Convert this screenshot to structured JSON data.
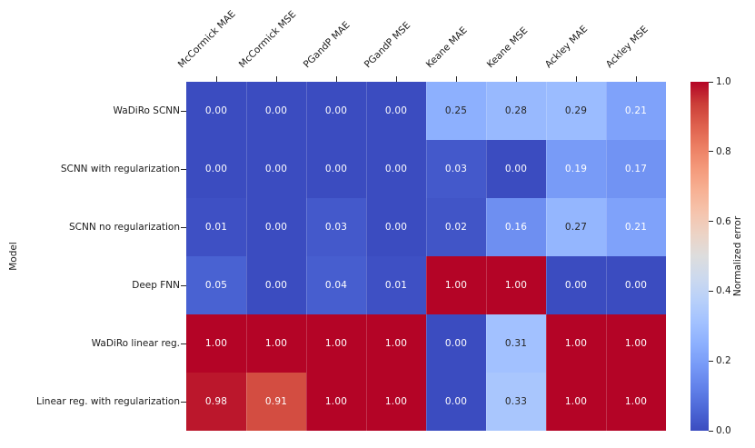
{
  "chart_data": {
    "type": "heatmap",
    "title": "",
    "xlabel": "",
    "ylabel": "Model",
    "x_categories": [
      "McCormick MAE",
      "McCormick MSE",
      "PGandP MAE",
      "PGandP MSE",
      "Keane MAE",
      "Keane MSE",
      "Ackley MAE",
      "Ackley MSE"
    ],
    "y_categories": [
      "WaDiRo SCNN",
      "SCNN with regularization",
      "SCNN no regularization",
      "Deep FNN",
      "WaDiRo linear reg.",
      "Linear reg. with regularization"
    ],
    "values": [
      [
        0.0,
        0.0,
        0.0,
        0.0,
        0.25,
        0.28,
        0.29,
        0.21
      ],
      [
        0.0,
        0.0,
        0.0,
        0.0,
        0.03,
        0.0,
        0.19,
        0.17
      ],
      [
        0.01,
        0.0,
        0.03,
        0.0,
        0.02,
        0.16,
        0.27,
        0.21
      ],
      [
        0.05,
        0.0,
        0.04,
        0.01,
        1.0,
        1.0,
        0.0,
        0.0
      ],
      [
        1.0,
        1.0,
        1.0,
        1.0,
        0.0,
        0.31,
        1.0,
        1.0
      ],
      [
        0.98,
        0.91,
        1.0,
        1.0,
        0.0,
        0.33,
        1.0,
        1.0
      ]
    ],
    "annotation_decimals": 2,
    "vmin": 0.0,
    "vmax": 1.0,
    "colormap": "coolwarm",
    "colorbar_label": "Normalized error",
    "colorbar_ticks": [
      1.0,
      0.8,
      0.6,
      0.4,
      0.2,
      0.0
    ],
    "x_tick_rotation_deg": 45,
    "x_ticks_position": "top",
    "grid": false
  },
  "colors": {
    "colormap_stops": [
      "#3B4CC0",
      "#4D68D7",
      "#6282EA",
      "#779AF7",
      "#8DB0FE",
      "#A3C2FF",
      "#B8D0F9",
      "#CCD9EE",
      "#DDDDDD",
      "#ECD3C5",
      "#F5C4AD",
      "#F7B194",
      "#F49A7B",
      "#EC7F63",
      "#DE604D",
      "#CB3E38",
      "#B40426"
    ],
    "annotation_light": "#FFFFFF",
    "annotation_dark": "#262626",
    "axis_text": "#1A1A1A",
    "tick_mark": "#262626",
    "background": "#FFFFFF"
  }
}
